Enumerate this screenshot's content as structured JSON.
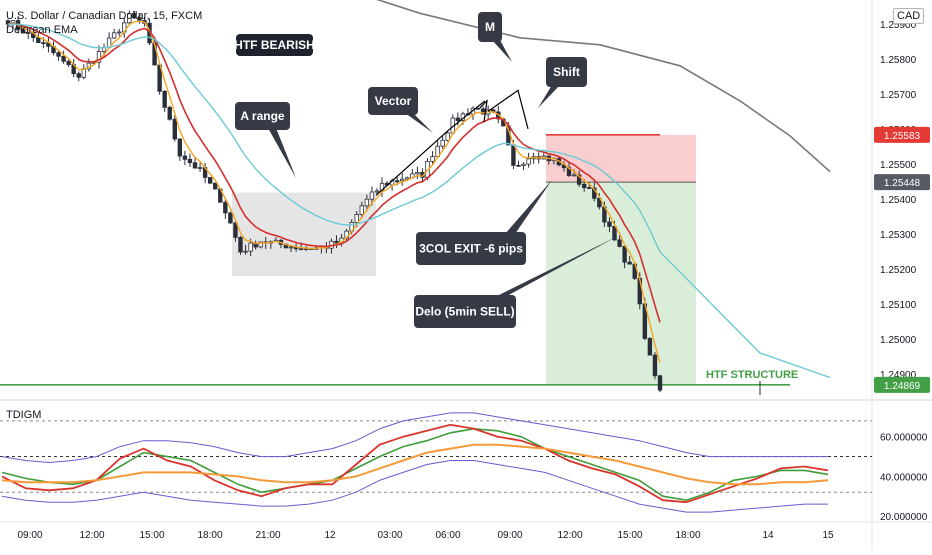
{
  "header": {
    "title": "U.S. Dollar / Canadian Dollar, 15, FXCM",
    "indicator": "Delorean EMA",
    "currency": "CAD"
  },
  "colors": {
    "price_line": "#d32f2f",
    "fast_ema": "#f5a623",
    "slow_ema": "#6ccad4",
    "long_ema": "#7a7a7a",
    "candle": "#2a2e39",
    "structure_line": "#43a047",
    "stop_zone": "#f7c5c5",
    "target_zone": "#d4ead2",
    "label_bg": "#363a45",
    "sub_red": "#d9342b",
    "sub_green": "#3f9d3a",
    "sub_orange": "#f59a3a",
    "sub_band": "#6a5acd"
  },
  "annotations": [
    {
      "id": "htf-bearish",
      "text": "HTF BEARISH"
    },
    {
      "id": "a-range",
      "text": "A range"
    },
    {
      "id": "vector",
      "text": "Vector"
    },
    {
      "id": "m",
      "text": "M"
    },
    {
      "id": "shift",
      "text": "Shift"
    },
    {
      "id": "3col-exit",
      "text": "3COL EXIT -6 pips"
    },
    {
      "id": "delo",
      "text": "Delo (5min SELL)"
    },
    {
      "id": "htf-structure",
      "text": "HTF STRUCTURE"
    }
  ],
  "chart_data": [
    {
      "type": "candlestick",
      "title": "U.S. Dollar / Canadian Dollar, 15, FXCM",
      "series": [
        {
          "name": "Delorean EMA"
        }
      ],
      "x_ticks": [
        "09:00",
        "12:00",
        "15:00",
        "18:00",
        "21:00",
        "12",
        "03:00",
        "06:00",
        "09:00",
        "12:00",
        "15:00",
        "18:00",
        "14",
        "15"
      ],
      "y_ticks": [
        "1.25900",
        "1.25800",
        "1.25700",
        "1.25600",
        "1.25500",
        "1.25400",
        "1.25300",
        "1.25200",
        "1.25100",
        "1.25000",
        "1.24900"
      ],
      "ylim": [
        1.2484,
        1.2598
      ],
      "price_labels": [
        "1.25583",
        "1.25448",
        "1.24869"
      ],
      "htf_structure_level": 1.24869,
      "stop_level": 1.25583,
      "entry_level": 1.25448,
      "approx_close_path": [
        [
          0,
          1.2591
        ],
        [
          8,
          1.2583
        ],
        [
          14,
          1.2575
        ],
        [
          20,
          1.2585
        ],
        [
          24,
          1.2592
        ],
        [
          27,
          1.259
        ],
        [
          30,
          1.2571
        ],
        [
          34,
          1.2553
        ],
        [
          38,
          1.2548
        ],
        [
          42,
          1.254
        ],
        [
          44,
          1.2533
        ],
        [
          46,
          1.2525
        ],
        [
          50,
          1.2528
        ],
        [
          54,
          1.2527
        ],
        [
          58,
          1.2526
        ],
        [
          62,
          1.2526
        ],
        [
          66,
          1.2528
        ],
        [
          70,
          1.2538
        ],
        [
          74,
          1.2544
        ],
        [
          78,
          1.2546
        ],
        [
          82,
          1.2547
        ],
        [
          84,
          1.2553
        ],
        [
          88,
          1.2562
        ],
        [
          92,
          1.2566
        ],
        [
          96,
          1.2564
        ],
        [
          98,
          1.256
        ],
        [
          100,
          1.2549
        ],
        [
          104,
          1.2553
        ],
        [
          108,
          1.2551
        ],
        [
          112,
          1.2546
        ],
        [
          116,
          1.2541
        ],
        [
          120,
          1.2528
        ],
        [
          124,
          1.2518
        ],
        [
          126,
          1.25
        ],
        [
          128,
          1.249
        ],
        [
          129,
          1.2486
        ]
      ],
      "grid": false,
      "legend": "top-left"
    },
    {
      "type": "line",
      "title": "TDIGM",
      "x_ticks": [
        "09:00",
        "12:00",
        "15:00",
        "18:00",
        "21:00",
        "12",
        "03:00",
        "06:00",
        "09:00",
        "12:00",
        "15:00",
        "18:00",
        "14",
        "15"
      ],
      "y_ticks": [
        "60.000000",
        "40.000000",
        "20.000000"
      ],
      "ylim": [
        18,
        76
      ],
      "levels": [
        68,
        50,
        32
      ],
      "series": [
        {
          "name": "",
          "values": [
            42,
            39,
            37,
            36,
            38,
            45,
            52,
            50,
            48,
            42,
            36,
            32,
            34,
            36,
            38,
            44,
            50,
            55,
            58,
            62,
            64,
            63,
            60,
            54,
            50,
            46,
            42,
            38,
            30,
            28,
            32,
            38,
            40,
            43,
            43,
            41
          ]
        },
        {
          "name": "",
          "values": [
            40,
            34,
            33,
            34,
            38,
            49,
            54,
            48,
            45,
            38,
            33,
            30,
            34,
            36,
            36,
            46,
            56,
            60,
            63,
            66,
            64,
            60,
            58,
            54,
            48,
            44,
            41,
            35,
            28,
            27,
            31,
            35,
            39,
            44,
            45,
            43
          ]
        },
        {
          "name": "",
          "values": [
            38,
            37,
            37,
            37,
            38,
            40,
            42,
            42,
            42,
            41,
            40,
            38,
            37,
            37,
            38,
            40,
            44,
            48,
            52,
            54,
            56,
            56,
            55,
            54,
            52,
            50,
            48,
            45,
            42,
            39,
            37,
            36,
            36,
            37,
            37,
            38
          ]
        },
        {
          "name": "",
          "values": [
            50,
            48,
            47,
            48,
            50,
            55,
            58,
            58,
            57,
            55,
            52,
            50,
            50,
            52,
            54,
            58,
            64,
            68,
            70,
            72,
            72,
            70,
            68,
            66,
            64,
            62,
            60,
            58,
            55,
            52,
            50,
            50,
            50,
            50,
            50,
            50
          ]
        },
        {
          "name": "",
          "values": [
            30,
            28,
            27,
            27,
            28,
            30,
            32,
            30,
            28,
            27,
            26,
            25,
            25,
            26,
            28,
            32,
            38,
            42,
            46,
            48,
            48,
            46,
            44,
            42,
            38,
            34,
            30,
            26,
            24,
            22,
            22,
            23,
            24,
            25,
            26,
            26
          ]
        }
      ],
      "grid": false,
      "legend": "top-left"
    }
  ]
}
